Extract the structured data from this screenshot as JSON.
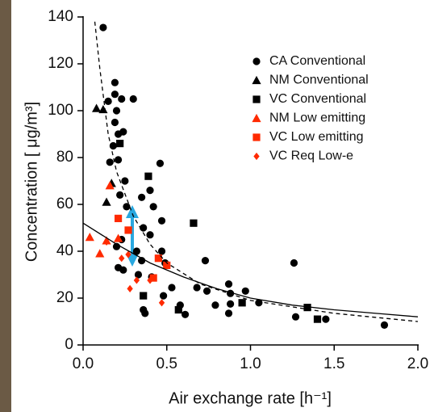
{
  "chart_data": {
    "type": "scatter",
    "x_label": "Air exchange rate [h⁻¹]",
    "y_label": "Concentration [ μg/m³]",
    "xlim": [
      0,
      2.0
    ],
    "ylim": [
      0,
      140
    ],
    "xticks": [
      {
        "value": 0,
        "label": "0.0"
      },
      0.5,
      {
        "value": 1,
        "label": "1.0"
      },
      1.5,
      {
        "value": 2,
        "label": "2.0"
      }
    ],
    "yticks": [
      0,
      20,
      40,
      60,
      80,
      100,
      120,
      140
    ],
    "legend": "upper right",
    "series": [
      {
        "name": "CA Conventional",
        "color": "#000000",
        "marker": "circle",
        "x": [
          0.12,
          0.19,
          0.19,
          0.15,
          0.23,
          0.3,
          0.2,
          0.19,
          0.21,
          0.24,
          0.18,
          0.16,
          0.21,
          0.25,
          0.46,
          0.22,
          0.26,
          0.35,
          0.4,
          0.42,
          0.47,
          0.4,
          0.36,
          0.23,
          0.2,
          0.32,
          0.35,
          0.47,
          0.49,
          0.33,
          0.41,
          0.21,
          0.24,
          0.53,
          0.48,
          0.36,
          0.37,
          0.58,
          0.61,
          0.73,
          0.68,
          0.74,
          0.79,
          0.87,
          0.88,
          0.88,
          0.87,
          0.97,
          1.05,
          1.26,
          1.27,
          1.45,
          1.8
        ],
        "values": [
          135.5,
          112,
          107,
          104,
          105,
          105,
          100,
          95,
          90,
          91,
          85,
          78,
          79,
          70,
          77.5,
          64,
          59,
          63,
          66,
          59,
          53,
          47,
          50,
          45,
          42,
          40,
          36,
          40,
          35,
          30,
          29,
          33,
          32,
          24.5,
          21,
          15,
          13.5,
          17,
          13,
          36,
          24.5,
          23,
          17,
          26,
          22,
          17.5,
          13.5,
          23,
          18,
          35,
          12,
          11,
          8.5
        ]
      },
      {
        "name": "NM Conventional",
        "color": "#000000",
        "marker": "triangle",
        "x": [
          0.08,
          0.12,
          0.14,
          0.17
        ],
        "values": [
          101,
          100.5,
          61,
          69
        ]
      },
      {
        "name": "VC Conventional",
        "color": "#000000",
        "marker": "square",
        "x": [
          0.22,
          0.39,
          0.36,
          0.66,
          0.57,
          0.95,
          1.34,
          1.4
        ],
        "values": [
          86,
          72,
          21,
          52,
          15,
          18,
          16,
          11
        ]
      },
      {
        "name": "NM Low emitting",
        "color": "#ff2a00",
        "marker": "triangle",
        "x": [
          0.04,
          0.1,
          0.14,
          0.16,
          0.21
        ],
        "values": [
          46,
          39,
          44.5,
          68,
          45.5
        ]
      },
      {
        "name": "VC Low emitting",
        "color": "#ff2a00",
        "marker": "square",
        "x": [
          0.21,
          0.27,
          0.45,
          0.5,
          0.42
        ],
        "values": [
          54,
          49,
          37,
          34,
          28.6
        ]
      },
      {
        "name": "VC Req Low-e",
        "color": "#ff2a00",
        "marker": "diamond",
        "x": [
          0.14,
          0.27,
          0.28,
          0.32,
          0.4,
          0.47,
          0.23
        ],
        "values": [
          44,
          38.6,
          24,
          27.6,
          27.6,
          18,
          37
        ]
      },
      {
        "color": "#000000",
        "style": "dashed",
        "x": [
          0.07,
          0.1,
          0.15,
          0.2,
          0.3,
          0.4,
          0.5,
          0.7,
          1.0,
          1.5,
          2.0
        ],
        "values": [
          138,
          118,
          90,
          74,
          55,
          43,
          35,
          26,
          19,
          13.5,
          10
        ]
      },
      {
        "color": "#000000",
        "style": "solid",
        "x": [
          0,
          0.2,
          0.4,
          0.6,
          0.8,
          1.0,
          1.25,
          1.5,
          1.75,
          2.0
        ],
        "values": [
          52,
          43,
          35,
          29,
          24,
          20,
          17,
          15,
          13.5,
          12
        ]
      }
    ]
  }
}
